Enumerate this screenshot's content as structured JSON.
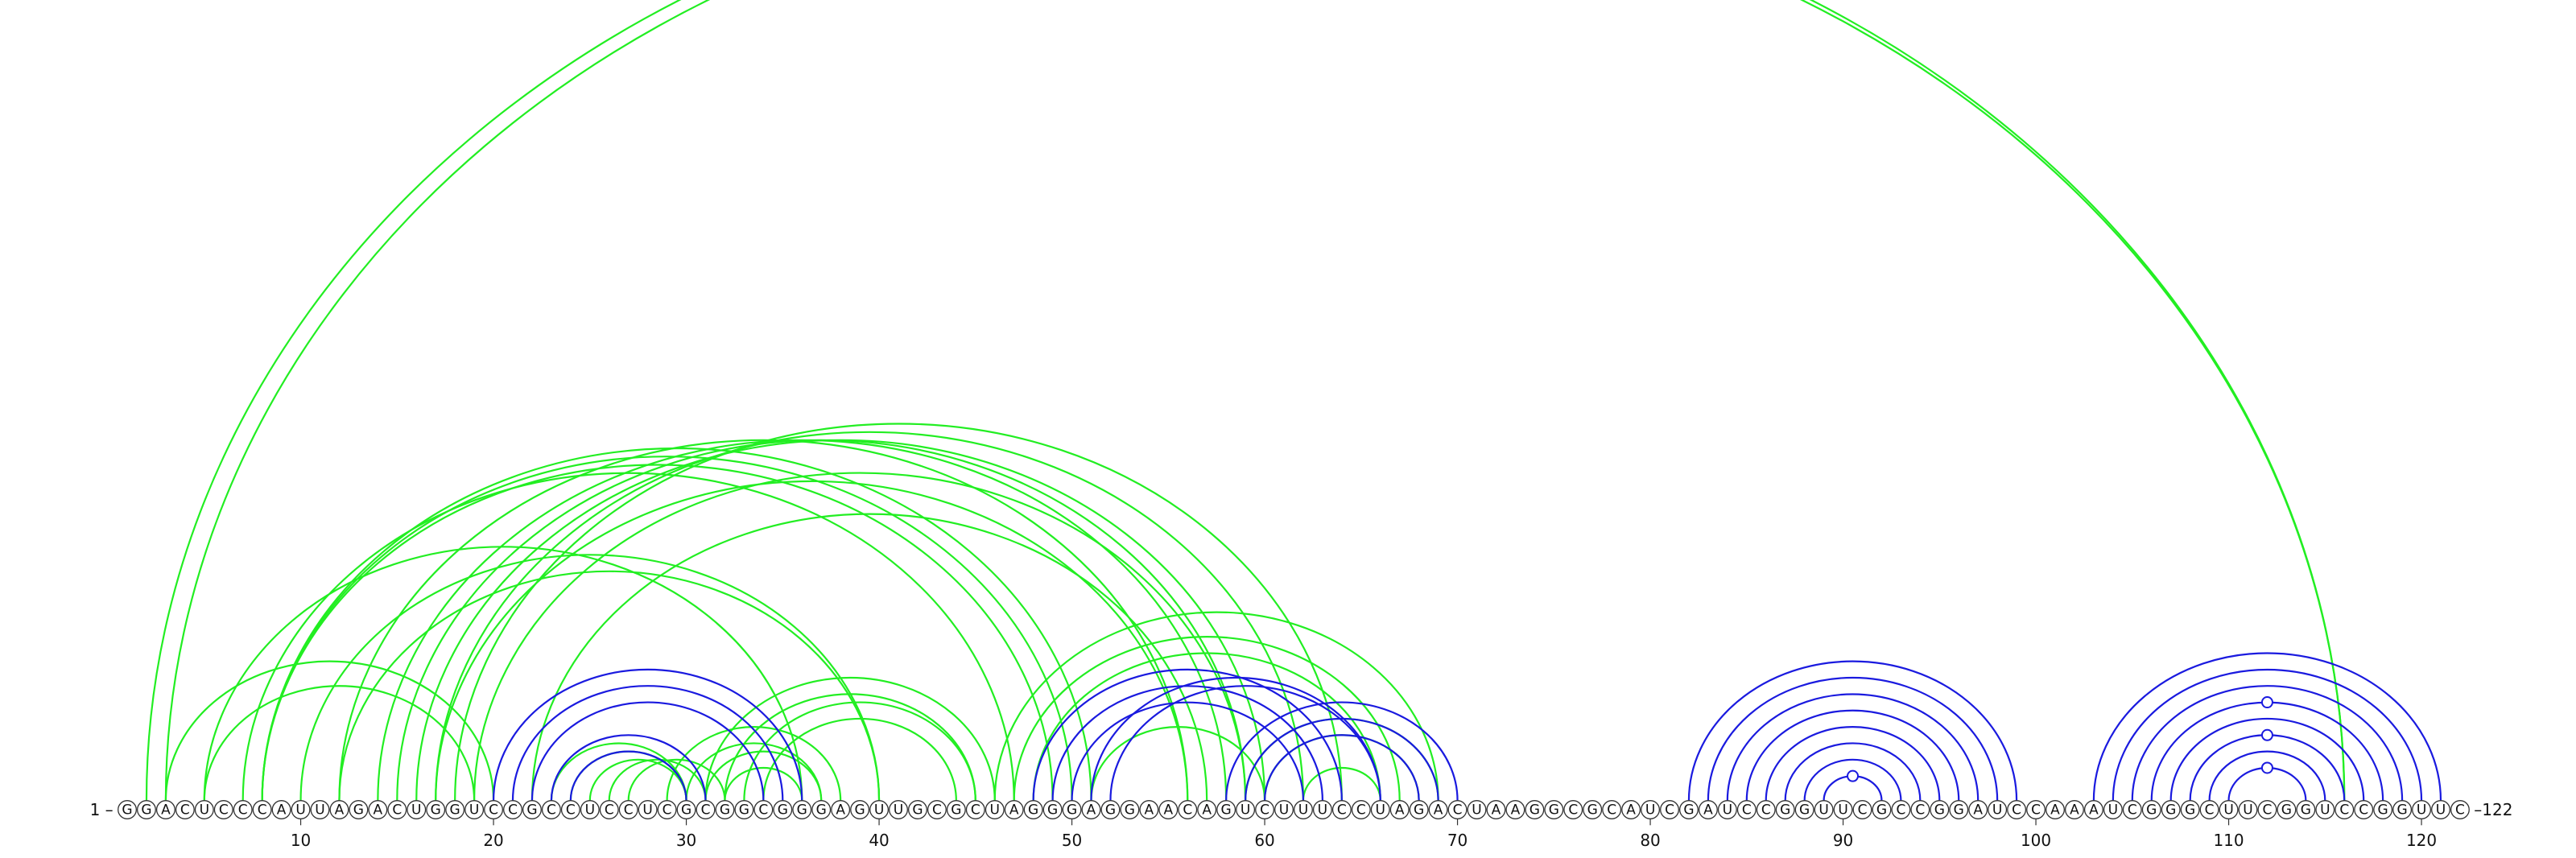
{
  "chart_data": {
    "type": "arc-diagram",
    "sequence": "GGACUCCCAUUAGACUGGUCCGCCUCCUCGCGGCGGGAGUUGCGCUAGGGAGGAACAGUCUUUCCUAGACUAAGGCGCAUCGAUCCGGUUCGCCGGAUCCAAAUCGGGCUUCGGUCCGGUUC",
    "start_label": "1 –",
    "end_label": "–122",
    "ticks": [
      10,
      20,
      30,
      40,
      50,
      60,
      70,
      80,
      90,
      100,
      110,
      120
    ],
    "colors": {
      "green": "#22ee22",
      "blue": "#1a1adf",
      "circle_stroke": "#333333"
    },
    "green_arcs": [
      [
        2,
        116
      ],
      [
        3,
        116
      ],
      [
        3,
        20
      ],
      [
        5,
        19
      ],
      [
        5,
        36
      ],
      [
        7,
        47
      ],
      [
        8,
        49
      ],
      [
        8,
        50
      ],
      [
        8,
        51
      ],
      [
        10,
        40
      ],
      [
        12,
        40
      ],
      [
        12,
        56
      ],
      [
        14,
        58
      ],
      [
        15,
        59
      ],
      [
        16,
        60
      ],
      [
        17,
        62
      ],
      [
        18,
        64
      ],
      [
        17,
        56
      ],
      [
        19,
        59
      ],
      [
        22,
        57
      ],
      [
        23,
        30
      ],
      [
        24,
        30
      ],
      [
        25,
        30
      ],
      [
        26,
        31
      ],
      [
        27,
        32
      ],
      [
        29,
        38
      ],
      [
        30,
        37
      ],
      [
        31,
        37
      ],
      [
        32,
        36
      ],
      [
        31,
        46
      ],
      [
        32,
        45
      ],
      [
        33,
        45
      ],
      [
        34,
        44
      ],
      [
        46,
        69
      ],
      [
        47,
        67
      ],
      [
        48,
        66
      ],
      [
        51,
        60
      ],
      [
        59,
        69
      ],
      [
        60,
        68
      ],
      [
        62,
        66
      ]
    ],
    "blue_arcs": [
      [
        20,
        36
      ],
      [
        21,
        35
      ],
      [
        22,
        34
      ],
      [
        23,
        31
      ],
      [
        24,
        30
      ],
      [
        48,
        64
      ],
      [
        49,
        63
      ],
      [
        50,
        62
      ],
      [
        51,
        66
      ],
      [
        52,
        66
      ],
      [
        58,
        70
      ],
      [
        59,
        69
      ],
      [
        60,
        68
      ],
      [
        82,
        99
      ],
      [
        83,
        98
      ],
      [
        84,
        97
      ],
      [
        85,
        96
      ],
      [
        86,
        95
      ],
      [
        87,
        94
      ],
      [
        88,
        93
      ],
      [
        89,
        92
      ],
      [
        103,
        121
      ],
      [
        104,
        120
      ],
      [
        105,
        119
      ],
      [
        106,
        118
      ],
      [
        107,
        117
      ],
      [
        108,
        116
      ],
      [
        109,
        115
      ],
      [
        110,
        114
      ]
    ],
    "markers": [
      {
        "pair": [
          89,
          92
        ],
        "color": "blue"
      },
      {
        "pair": [
          106,
          118
        ],
        "color": "blue"
      },
      {
        "pair": [
          108,
          116
        ],
        "color": "blue"
      },
      {
        "pair": [
          110,
          114
        ],
        "color": "blue"
      }
    ]
  }
}
